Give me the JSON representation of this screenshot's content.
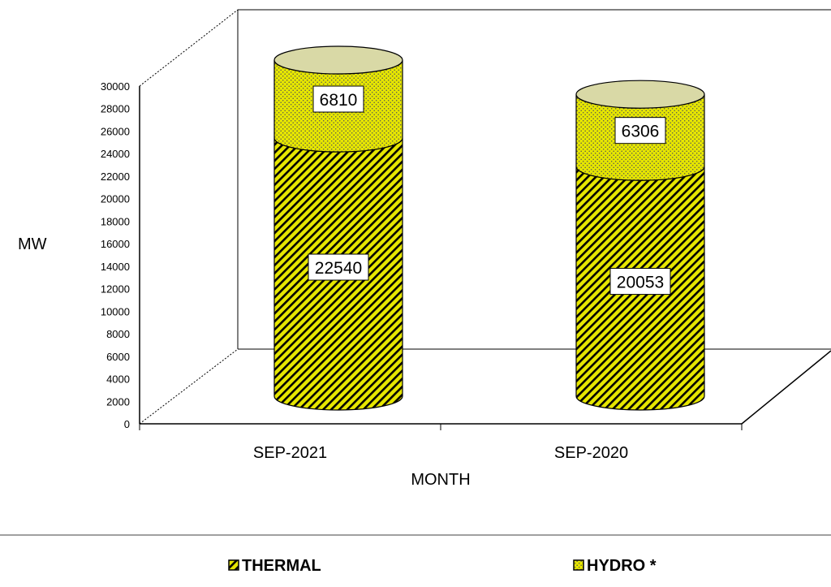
{
  "chart_data": {
    "type": "bar",
    "stacked": true,
    "style": "3d-cylinder",
    "categories": [
      "SEP-2021",
      "SEP-2020"
    ],
    "series": [
      {
        "name": "THERMAL",
        "values": [
          22540,
          20053
        ],
        "color": "#e6e600",
        "pattern": "diagonal-stripes"
      },
      {
        "name": "HYDRO *",
        "values": [
          6810,
          6306
        ],
        "color": "#e6e600",
        "pattern": "dotted"
      }
    ],
    "xlabel": "MONTH",
    "ylabel": "MW",
    "ylim": [
      0,
      30000
    ],
    "yticks": [
      0,
      2000,
      4000,
      6000,
      8000,
      10000,
      12000,
      14000,
      16000,
      18000,
      20000,
      22000,
      24000,
      26000,
      28000,
      30000
    ],
    "legend_position": "bottom",
    "grid": false
  }
}
